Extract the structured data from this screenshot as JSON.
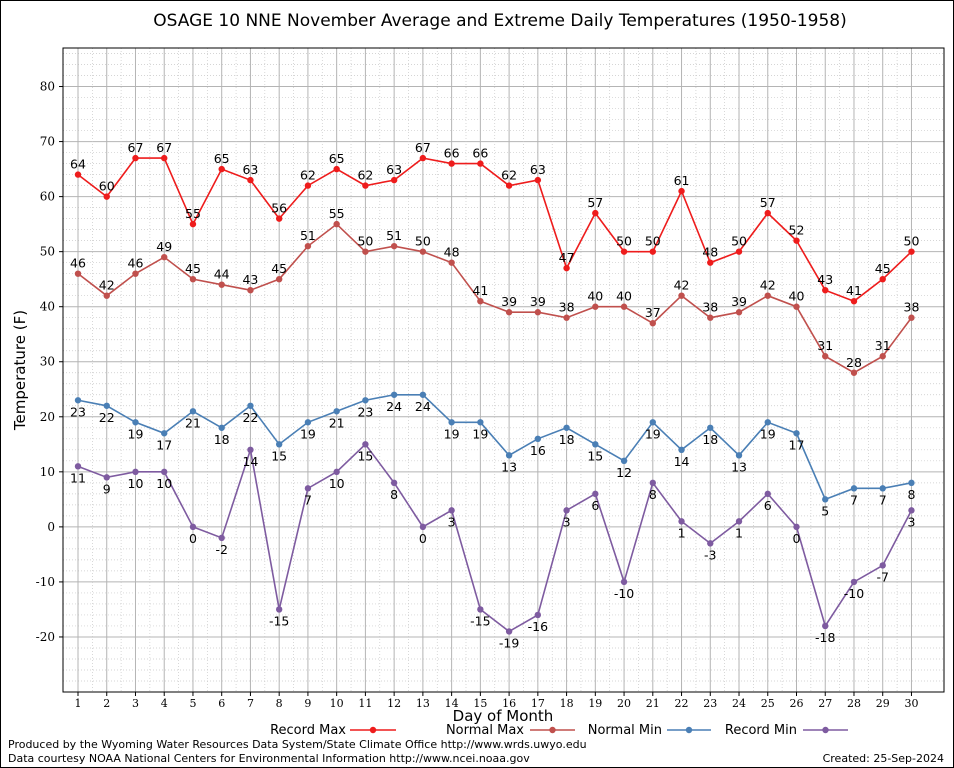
{
  "chart_data": {
    "type": "line",
    "title": "OSAGE 10 NNE November Average and Extreme Daily Temperatures (1950-1958)",
    "xlabel": "Day of Month",
    "ylabel": "Temperature (F)",
    "ylim": [
      -30,
      87
    ],
    "yticks": [
      -20,
      -10,
      0,
      10,
      20,
      30,
      40,
      50,
      60,
      70,
      80
    ],
    "x": [
      1,
      2,
      3,
      4,
      5,
      6,
      7,
      8,
      9,
      10,
      11,
      12,
      13,
      14,
      15,
      16,
      17,
      18,
      19,
      20,
      21,
      22,
      23,
      24,
      25,
      26,
      27,
      28,
      29,
      30
    ],
    "grid": true,
    "legend_position": "bottom",
    "series": [
      {
        "name": "Record Max",
        "color": "#ee1c1c",
        "label_pos": "above",
        "values": [
          64,
          60,
          67,
          67,
          55,
          65,
          63,
          56,
          62,
          65,
          62,
          63,
          67,
          66,
          66,
          62,
          63,
          47,
          57,
          50,
          50,
          61,
          48,
          50,
          57,
          52,
          43,
          41,
          45,
          50
        ]
      },
      {
        "name": "Normal Max",
        "color": "#c0504d",
        "label_pos": "above",
        "values": [
          46,
          42,
          46,
          49,
          45,
          44,
          43,
          45,
          51,
          55,
          50,
          51,
          50,
          48,
          41,
          39,
          39,
          38,
          40,
          40,
          37,
          42,
          38,
          39,
          42,
          40,
          31,
          28,
          31,
          38
        ]
      },
      {
        "name": "Normal Min",
        "color": "#4a7fb5",
        "label_pos": "below",
        "values": [
          23,
          22,
          19,
          17,
          21,
          18,
          22,
          15,
          19,
          21,
          23,
          24,
          24,
          19,
          19,
          13,
          16,
          18,
          15,
          12,
          19,
          14,
          18,
          13,
          19,
          17,
          5,
          7,
          7,
          8
        ]
      },
      {
        "name": "Record Min",
        "color": "#7e5ba0",
        "label_pos": "below",
        "values": [
          11,
          9,
          10,
          10,
          0,
          -2,
          14,
          -15,
          7,
          10,
          15,
          8,
          0,
          3,
          -15,
          -19,
          -16,
          3,
          6,
          -10,
          8,
          1,
          -3,
          1,
          6,
          0,
          -18,
          -10,
          -7,
          3
        ]
      }
    ]
  },
  "footer": {
    "produced_by": "Produced by the Wyoming Water Resources Data System/State Climate Office http://www.wrds.uwyo.edu",
    "courtesy": "Data courtesy NOAA National Centers for Environmental Information http://www.ncei.noaa.gov",
    "created": "Created:  25-Sep-2024"
  }
}
